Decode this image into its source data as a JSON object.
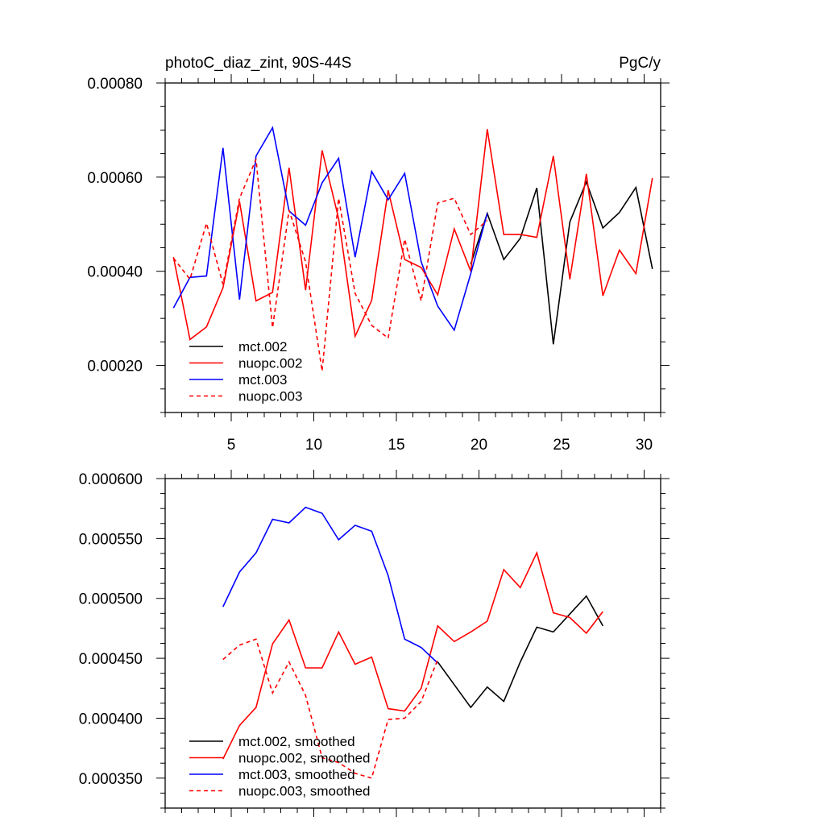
{
  "colors": {
    "mct_002": "#000000",
    "nuopc_002": "#ff0000",
    "mct_003": "#0000ff",
    "nuopc_003": "#ff0000"
  },
  "chart_data": [
    {
      "type": "line",
      "title_left": "photoC_diaz_zint, 90S-44S",
      "title_right": "PgC/y",
      "xlabel": "",
      "ylabel": "",
      "xlim": [
        1,
        31
      ],
      "ylim": [
        0.0001,
        0.0008
      ],
      "yticks": [
        0.0002,
        0.0004,
        0.0006,
        0.0008
      ],
      "ytick_labels": [
        "0.00020",
        "0.00040",
        "0.00060",
        "0.00080"
      ],
      "xticks": [
        5,
        10,
        15,
        20,
        25,
        30
      ],
      "xtick_labels": [
        "5",
        "10",
        "15",
        "20",
        "25",
        "30"
      ],
      "legend_position": "bottom-left",
      "series": [
        {
          "name": "mct.002",
          "color": "#000000",
          "dash": "solid",
          "x": [
            19.5,
            20.5,
            21.5,
            22.5,
            23.5,
            24.5,
            25.5,
            26.5,
            27.5,
            28.5,
            29.5,
            30.5
          ],
          "values": [
            0.000415,
            0.000523,
            0.000425,
            0.00047,
            0.000577,
            0.000245,
            0.000505,
            0.00059,
            0.000492,
            0.000525,
            0.000578,
            0.000405
          ]
        },
        {
          "name": "nuopc.002",
          "color": "#ff0000",
          "dash": "solid",
          "x": [
            1.5,
            2.5,
            3.5,
            4.5,
            5.5,
            6.5,
            7.5,
            8.5,
            9.5,
            10.5,
            11.5,
            12.5,
            13.5,
            14.5,
            15.5,
            16.5,
            17.5,
            18.5,
            19.5,
            20.5,
            21.5,
            22.5,
            23.5,
            24.5,
            25.5,
            26.5,
            27.5,
            28.5,
            29.5,
            30.5
          ],
          "values": [
            0.00043,
            0.000255,
            0.000282,
            0.000365,
            0.000548,
            0.000337,
            0.000355,
            0.00062,
            0.00036,
            0.000657,
            0.000512,
            0.000262,
            0.000338,
            0.000572,
            0.000425,
            0.000408,
            0.00035,
            0.00049,
            0.0004,
            0.000702,
            0.000478,
            0.000478,
            0.000472,
            0.000645,
            0.000383,
            0.000607,
            0.000348,
            0.000445,
            0.000395,
            0.000598
          ]
        },
        {
          "name": "mct.003",
          "color": "#0000ff",
          "dash": "solid",
          "x": [
            1.5,
            2.5,
            3.5,
            4.5,
            5.5,
            6.5,
            7.5,
            8.5,
            9.5,
            10.5,
            11.5,
            12.5,
            13.5,
            14.5,
            15.5,
            16.5,
            17.5,
            18.5,
            19.5,
            20.5
          ],
          "values": [
            0.000322,
            0.000387,
            0.00039,
            0.000662,
            0.00034,
            0.000645,
            0.000705,
            0.000528,
            0.000498,
            0.000588,
            0.00064,
            0.00043,
            0.000612,
            0.000552,
            0.000608,
            0.00042,
            0.000326,
            0.000275,
            0.000395,
            0.000523
          ]
        },
        {
          "name": "nuopc.003",
          "color": "#ff0000",
          "dash": "dashed",
          "x": [
            1.5,
            2.5,
            3.5,
            4.5,
            5.5,
            6.5,
            7.5,
            8.5,
            9.5,
            10.5,
            11.5,
            12.5,
            13.5,
            14.5,
            15.5,
            16.5,
            17.5,
            18.5,
            19.5,
            20.5
          ],
          "values": [
            0.000428,
            0.000383,
            0.000502,
            0.000372,
            0.000555,
            0.000638,
            0.00028,
            0.00053,
            0.00042,
            0.000188,
            0.000555,
            0.000353,
            0.000285,
            0.000258,
            0.000468,
            0.000337,
            0.000545,
            0.000555,
            0.000478,
            0.000508
          ]
        }
      ]
    },
    {
      "type": "line",
      "title_left": "",
      "title_right": "",
      "xlabel": "",
      "ylabel": "",
      "xlim": [
        1,
        31
      ],
      "ylim": [
        0.000325,
        0.0006
      ],
      "yticks": [
        0.00035,
        0.0004,
        0.00045,
        0.0005,
        0.00055,
        0.0006
      ],
      "ytick_labels": [
        "0.000350",
        "0.000400",
        "0.000450",
        "0.000500",
        "0.000550",
        "0.000600"
      ],
      "xticks": [
        5,
        10,
        15,
        20,
        25,
        30
      ],
      "xtick_labels": [],
      "legend_position": "bottom-left",
      "series": [
        {
          "name": "mct.002, smoothed",
          "color": "#000000",
          "dash": "solid",
          "x": [
            17.5,
            18.5,
            19.5,
            20.5,
            21.5,
            22.5,
            23.5,
            24.5,
            25.5,
            26.5,
            27.5
          ],
          "values": [
            0.000447,
            0.000428,
            0.000409,
            0.000426,
            0.000414,
            0.000447,
            0.000476,
            0.000472,
            0.000487,
            0.000502,
            0.000477
          ]
        },
        {
          "name": "nuopc.002, smoothed",
          "color": "#ff0000",
          "dash": "solid",
          "x": [
            4.5,
            5.5,
            6.5,
            7.5,
            8.5,
            9.5,
            10.5,
            11.5,
            12.5,
            13.5,
            14.5,
            15.5,
            16.5,
            17.5,
            18.5,
            19.5,
            20.5,
            21.5,
            22.5,
            23.5,
            24.5,
            25.5,
            26.5,
            27.5
          ],
          "values": [
            0.000366,
            0.000394,
            0.000409,
            0.000462,
            0.000482,
            0.000442,
            0.000442,
            0.000472,
            0.000445,
            0.000451,
            0.000408,
            0.000406,
            0.000425,
            0.000477,
            0.000464,
            0.000472,
            0.000481,
            0.000524,
            0.000509,
            0.000538,
            0.000488,
            0.000484,
            0.000471,
            0.000489
          ]
        },
        {
          "name": "mct.003, smoothed",
          "color": "#0000ff",
          "dash": "solid",
          "x": [
            4.5,
            5.5,
            6.5,
            7.5,
            8.5,
            9.5,
            10.5,
            11.5,
            12.5,
            13.5,
            14.5,
            15.5,
            16.5,
            17.5
          ],
          "values": [
            0.000493,
            0.000522,
            0.000538,
            0.000566,
            0.000563,
            0.000576,
            0.000571,
            0.000549,
            0.000561,
            0.000556,
            0.000519,
            0.000466,
            0.000459,
            0.000446
          ]
        },
        {
          "name": "nuopc.003, smoothed",
          "color": "#ff0000",
          "dash": "dashed",
          "x": [
            4.5,
            5.5,
            6.5,
            7.5,
            8.5,
            9.5,
            10.5,
            11.5,
            12.5,
            13.5,
            14.5,
            15.5,
            16.5,
            17.5
          ],
          "values": [
            0.000449,
            0.000461,
            0.000466,
            0.000421,
            0.000447,
            0.000419,
            0.000367,
            0.000363,
            0.000354,
            0.00035,
            0.000399,
            0.0004,
            0.000414,
            0.000449
          ]
        }
      ]
    }
  ]
}
